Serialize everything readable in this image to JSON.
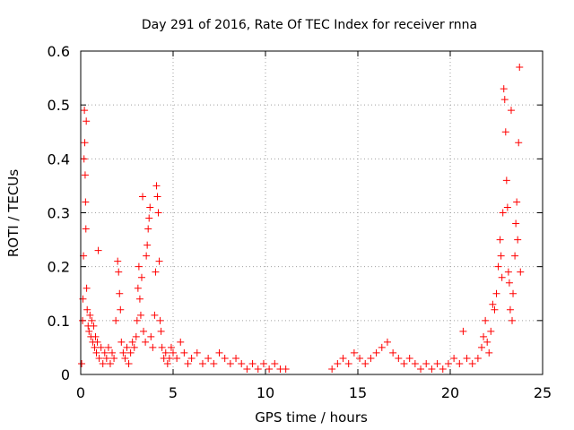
{
  "chart_data": {
    "type": "scatter",
    "title": "Day 291 of 2016, Rate Of TEC Index for receiver rnna",
    "xlabel": "GPS time / hours",
    "ylabel": "ROTI / TECUs",
    "xlim": [
      0,
      25
    ],
    "ylim": [
      0,
      0.6
    ],
    "xticks": [
      0,
      5,
      10,
      15,
      20,
      25
    ],
    "yticks": [
      0,
      0.1,
      0.2,
      0.3,
      0.4,
      0.5,
      0.6
    ],
    "xtick_labels": [
      "0",
      "5",
      "10",
      "15",
      "20",
      "25"
    ],
    "ytick_labels": [
      "0",
      "0.1",
      "0.2",
      "0.3",
      "0.4",
      "0.5",
      "0.6"
    ],
    "grid": true,
    "marker": "+",
    "color": "#ff0000",
    "series": [
      {
        "name": "ROTI",
        "points": [
          [
            0.05,
            0.02
          ],
          [
            0.1,
            0.1
          ],
          [
            0.12,
            0.14
          ],
          [
            0.15,
            0.22
          ],
          [
            0.18,
            0.4
          ],
          [
            0.2,
            0.49
          ],
          [
            0.22,
            0.43
          ],
          [
            0.24,
            0.37
          ],
          [
            0.26,
            0.32
          ],
          [
            0.28,
            0.27
          ],
          [
            0.3,
            0.47
          ],
          [
            0.32,
            0.16
          ],
          [
            0.35,
            0.12
          ],
          [
            0.4,
            0.09
          ],
          [
            0.45,
            0.08
          ],
          [
            0.5,
            0.11
          ],
          [
            0.55,
            0.07
          ],
          [
            0.6,
            0.1
          ],
          [
            0.65,
            0.06
          ],
          [
            0.7,
            0.09
          ],
          [
            0.75,
            0.05
          ],
          [
            0.8,
            0.07
          ],
          [
            0.85,
            0.04
          ],
          [
            0.9,
            0.06
          ],
          [
            0.95,
            0.23
          ],
          [
            1.0,
            0.03
          ],
          [
            1.1,
            0.05
          ],
          [
            1.2,
            0.02
          ],
          [
            1.3,
            0.04
          ],
          [
            1.4,
            0.03
          ],
          [
            1.5,
            0.05
          ],
          [
            1.6,
            0.02
          ],
          [
            1.7,
            0.04
          ],
          [
            1.8,
            0.03
          ],
          [
            1.9,
            0.1
          ],
          [
            2.0,
            0.21
          ],
          [
            2.05,
            0.19
          ],
          [
            2.1,
            0.15
          ],
          [
            2.15,
            0.12
          ],
          [
            2.2,
            0.06
          ],
          [
            2.3,
            0.04
          ],
          [
            2.4,
            0.03
          ],
          [
            2.5,
            0.05
          ],
          [
            2.6,
            0.02
          ],
          [
            2.7,
            0.04
          ],
          [
            2.8,
            0.06
          ],
          [
            2.9,
            0.05
          ],
          [
            3.0,
            0.07
          ],
          [
            3.05,
            0.1
          ],
          [
            3.1,
            0.16
          ],
          [
            3.15,
            0.2
          ],
          [
            3.2,
            0.14
          ],
          [
            3.25,
            0.11
          ],
          [
            3.3,
            0.18
          ],
          [
            3.35,
            0.33
          ],
          [
            3.4,
            0.08
          ],
          [
            3.5,
            0.06
          ],
          [
            3.55,
            0.22
          ],
          [
            3.6,
            0.24
          ],
          [
            3.65,
            0.27
          ],
          [
            3.7,
            0.29
          ],
          [
            3.75,
            0.31
          ],
          [
            3.8,
            0.07
          ],
          [
            3.9,
            0.05
          ],
          [
            4.0,
            0.11
          ],
          [
            4.05,
            0.19
          ],
          [
            4.1,
            0.35
          ],
          [
            4.15,
            0.33
          ],
          [
            4.2,
            0.3
          ],
          [
            4.25,
            0.21
          ],
          [
            4.3,
            0.1
          ],
          [
            4.35,
            0.08
          ],
          [
            4.4,
            0.05
          ],
          [
            4.5,
            0.03
          ],
          [
            4.6,
            0.04
          ],
          [
            4.7,
            0.02
          ],
          [
            4.8,
            0.03
          ],
          [
            4.9,
            0.05
          ],
          [
            5.0,
            0.04
          ],
          [
            5.2,
            0.03
          ],
          [
            5.4,
            0.06
          ],
          [
            5.6,
            0.04
          ],
          [
            5.8,
            0.02
          ],
          [
            6.0,
            0.03
          ],
          [
            6.3,
            0.04
          ],
          [
            6.6,
            0.02
          ],
          [
            6.9,
            0.03
          ],
          [
            7.2,
            0.02
          ],
          [
            7.5,
            0.04
          ],
          [
            7.8,
            0.03
          ],
          [
            8.1,
            0.02
          ],
          [
            8.4,
            0.03
          ],
          [
            8.7,
            0.02
          ],
          [
            9.0,
            0.01
          ],
          [
            9.3,
            0.02
          ],
          [
            9.6,
            0.01
          ],
          [
            9.9,
            0.02
          ],
          [
            10.2,
            0.01
          ],
          [
            10.5,
            0.02
          ],
          [
            10.8,
            0.01
          ],
          [
            11.1,
            0.01
          ],
          [
            13.6,
            0.01
          ],
          [
            13.9,
            0.02
          ],
          [
            14.2,
            0.03
          ],
          [
            14.5,
            0.02
          ],
          [
            14.8,
            0.04
          ],
          [
            15.1,
            0.03
          ],
          [
            15.4,
            0.02
          ],
          [
            15.7,
            0.03
          ],
          [
            16.0,
            0.04
          ],
          [
            16.3,
            0.05
          ],
          [
            16.6,
            0.06
          ],
          [
            16.9,
            0.04
          ],
          [
            17.2,
            0.03
          ],
          [
            17.5,
            0.02
          ],
          [
            17.8,
            0.03
          ],
          [
            18.1,
            0.02
          ],
          [
            18.4,
            0.01
          ],
          [
            18.7,
            0.02
          ],
          [
            19.0,
            0.01
          ],
          [
            19.3,
            0.02
          ],
          [
            19.6,
            0.01
          ],
          [
            19.9,
            0.02
          ],
          [
            20.2,
            0.03
          ],
          [
            20.5,
            0.02
          ],
          [
            20.7,
            0.08
          ],
          [
            20.9,
            0.03
          ],
          [
            21.2,
            0.02
          ],
          [
            21.5,
            0.03
          ],
          [
            21.7,
            0.05
          ],
          [
            21.8,
            0.07
          ],
          [
            21.9,
            0.1
          ],
          [
            22.0,
            0.06
          ],
          [
            22.1,
            0.04
          ],
          [
            22.2,
            0.08
          ],
          [
            22.3,
            0.13
          ],
          [
            22.4,
            0.12
          ],
          [
            22.5,
            0.15
          ],
          [
            22.6,
            0.2
          ],
          [
            22.7,
            0.25
          ],
          [
            22.75,
            0.22
          ],
          [
            22.8,
            0.18
          ],
          [
            22.85,
            0.3
          ],
          [
            22.9,
            0.53
          ],
          [
            22.95,
            0.51
          ],
          [
            23.0,
            0.45
          ],
          [
            23.05,
            0.36
          ],
          [
            23.1,
            0.31
          ],
          [
            23.15,
            0.19
          ],
          [
            23.2,
            0.17
          ],
          [
            23.25,
            0.12
          ],
          [
            23.3,
            0.49
          ],
          [
            23.35,
            0.1
          ],
          [
            23.4,
            0.15
          ],
          [
            23.5,
            0.22
          ],
          [
            23.55,
            0.28
          ],
          [
            23.6,
            0.32
          ],
          [
            23.65,
            0.25
          ],
          [
            23.7,
            0.43
          ],
          [
            23.75,
            0.57
          ],
          [
            23.8,
            0.19
          ]
        ]
      }
    ]
  }
}
